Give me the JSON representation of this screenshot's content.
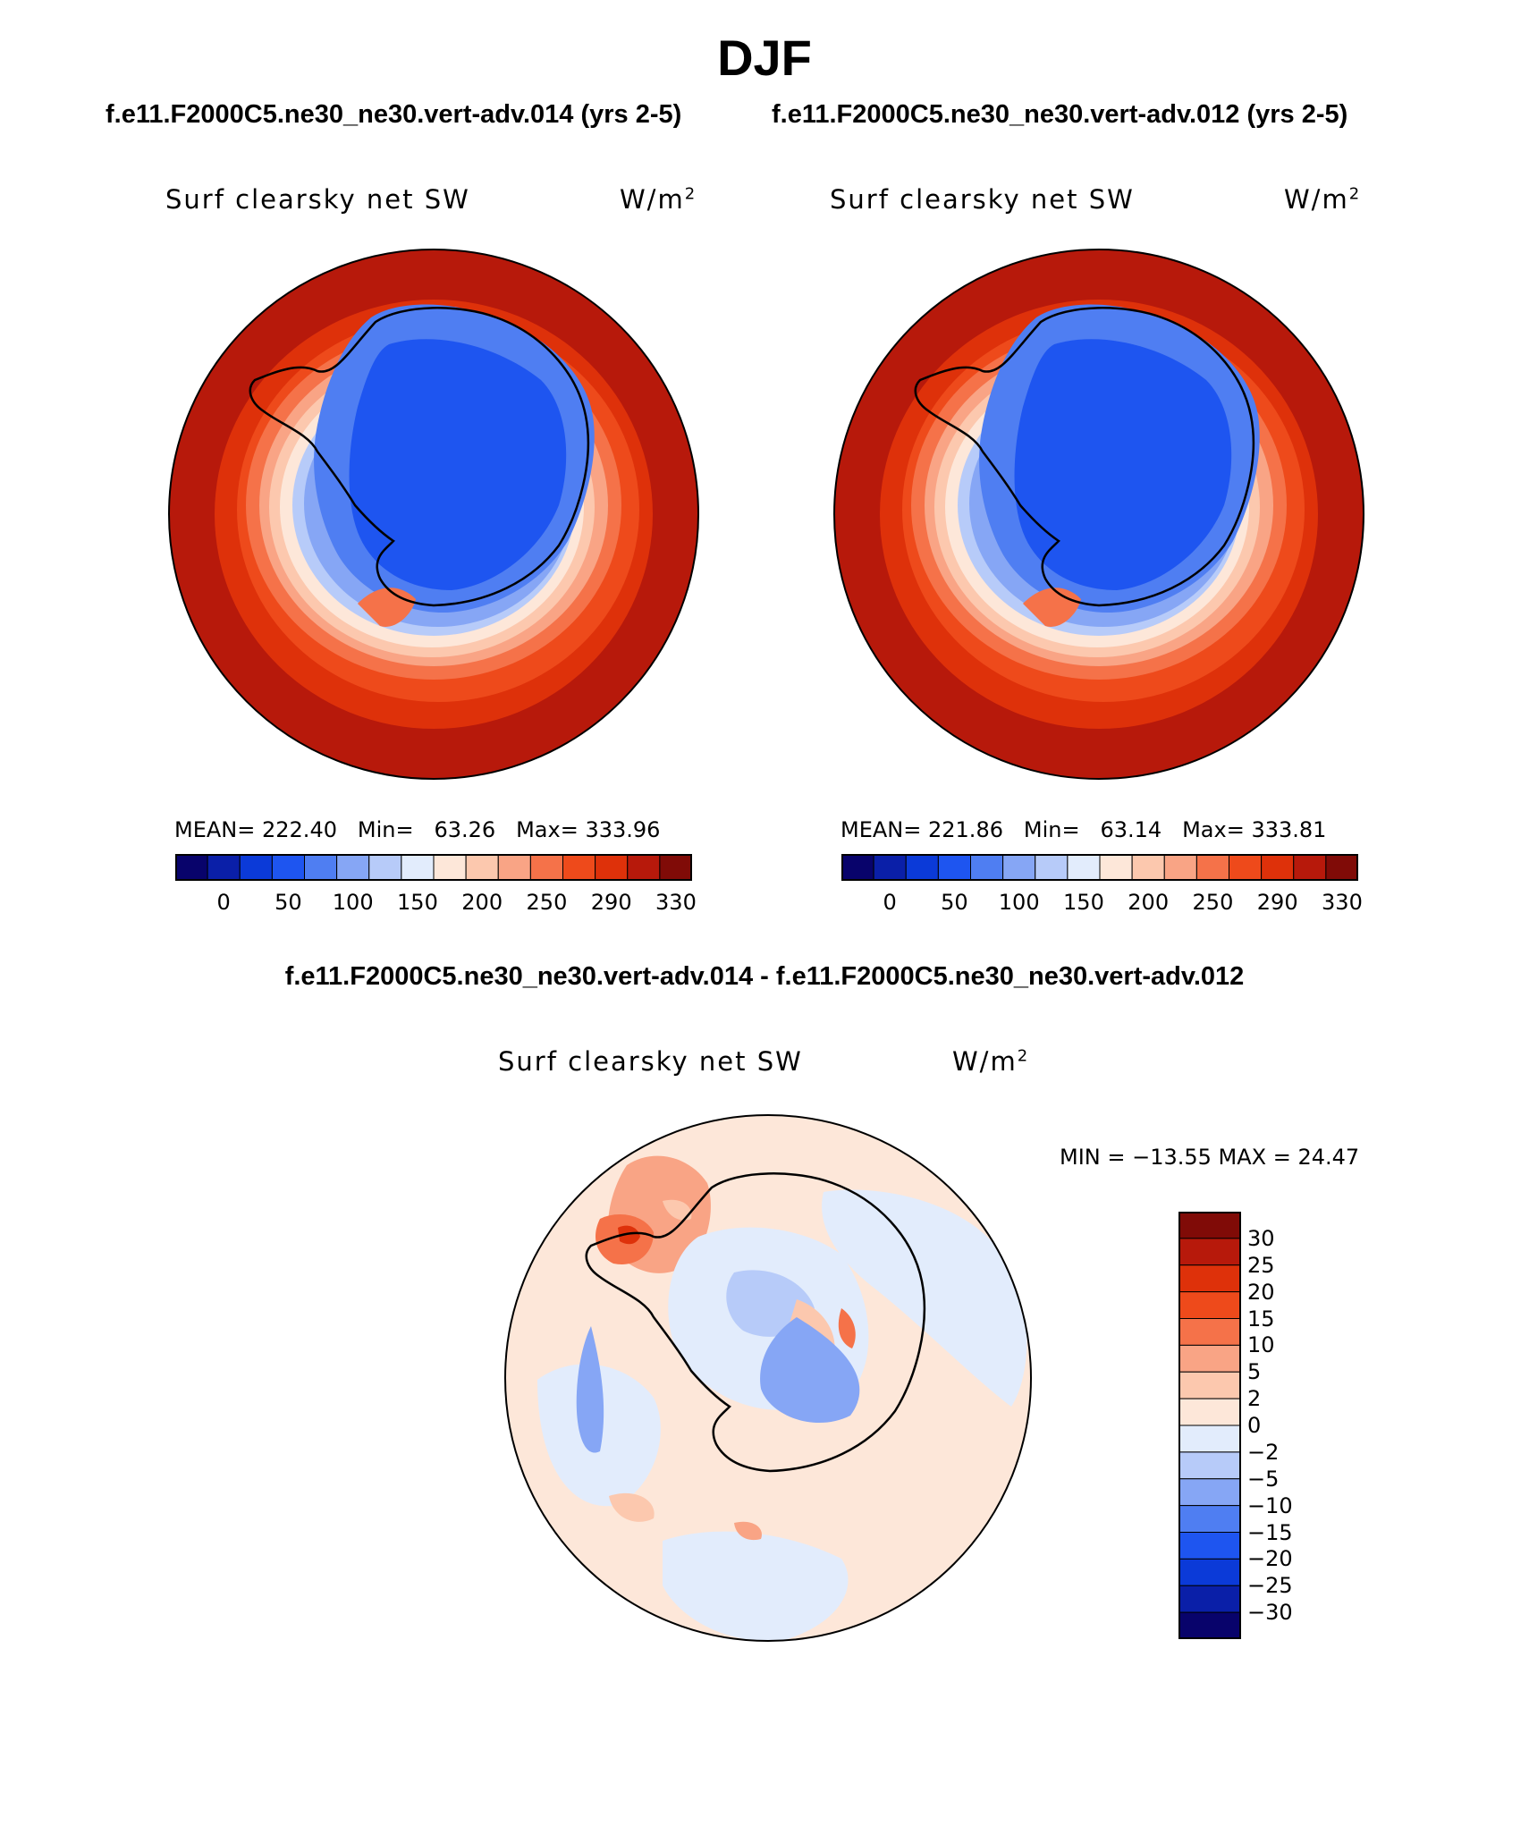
{
  "title": "DJF",
  "panels": {
    "left": {
      "case": "f.e11.F2000C5.ne30_ne30.vert-adv.014 (yrs 2-5)",
      "variable": "Surf clearsky net SW",
      "units_base": "W/m",
      "units_exp": "2",
      "stats": {
        "mean_label": "MEAN=",
        "mean": "222.40",
        "min_label": "Min=",
        "min": "63.26",
        "max_label": "Max=",
        "max": "333.96"
      }
    },
    "right": {
      "case": "f.e11.F2000C5.ne30_ne30.vert-adv.012 (yrs 2-5)",
      "variable": "Surf clearsky net SW",
      "units_base": "W/m",
      "units_exp": "2",
      "stats": {
        "mean_label": "MEAN=",
        "mean": "221.86",
        "min_label": "Min=",
        "min": "63.14",
        "max_label": "Max=",
        "max": "333.81"
      }
    },
    "diff": {
      "title": "f.e11.F2000C5.ne30_ne30.vert-adv.014 - f.e11.F2000C5.ne30_ne30.vert-adv.012",
      "variable": "Surf clearsky net SW",
      "units_base": "W/m",
      "units_exp": "2",
      "minmax": "MIN = −13.55 MAX =   24.47"
    }
  },
  "colorbar_main": {
    "colors": [
      "#08036b",
      "#0a1fa8",
      "#0b3ad8",
      "#1e55f0",
      "#4f7ef2",
      "#86a6f5",
      "#b7cbf9",
      "#e2ecfc",
      "#fde7d9",
      "#fcc8ae",
      "#f9a485",
      "#f57249",
      "#ee4a1b",
      "#de310a",
      "#b7190b",
      "#800b07"
    ],
    "ticks": [
      "0",
      "50",
      "100",
      "150",
      "200",
      "250",
      "290",
      "330"
    ]
  },
  "colorbar_diff": {
    "colors": [
      "#800b07",
      "#b7190b",
      "#de310a",
      "#ee4a1b",
      "#f57249",
      "#f9a485",
      "#fcc8ae",
      "#fde7d9",
      "#e2ecfc",
      "#b7cbf9",
      "#86a6f5",
      "#4f7ef2",
      "#1e55f0",
      "#0b3ad8",
      "#0a1fa8",
      "#08036b"
    ],
    "ticks": [
      "30",
      "25",
      "20",
      "15",
      "10",
      "5",
      "2",
      "0",
      "−2",
      "−5",
      "−10",
      "−15",
      "−20",
      "−25",
      "−30"
    ]
  }
}
